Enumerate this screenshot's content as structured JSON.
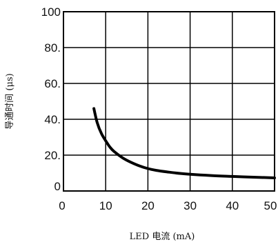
{
  "chart_data": {
    "type": "line",
    "title": "",
    "xlabel": "LED 电流 (mA)",
    "ylabel": "导通时间 (μs)",
    "xlim": [
      0,
      50
    ],
    "ylim": [
      0,
      100
    ],
    "x_ticks": [
      "0",
      "10",
      "20",
      "30",
      "40",
      "50"
    ],
    "y_ticks": [
      "0",
      "20.",
      "40.",
      "60.",
      "80.",
      "100"
    ],
    "grid": true,
    "legend": "none",
    "line_color": "#000000",
    "series": [
      {
        "x": [
          7.2,
          8,
          9,
          10,
          11,
          12,
          14,
          16,
          18,
          20,
          22,
          25,
          28,
          30,
          35,
          40,
          45,
          50
        ],
        "y": [
          46,
          38,
          32,
          28,
          24.5,
          22,
          18.5,
          16,
          14,
          12.5,
          11.5,
          10.5,
          9.7,
          9.3,
          8.6,
          8.1,
          7.7,
          7.3
        ]
      }
    ]
  }
}
